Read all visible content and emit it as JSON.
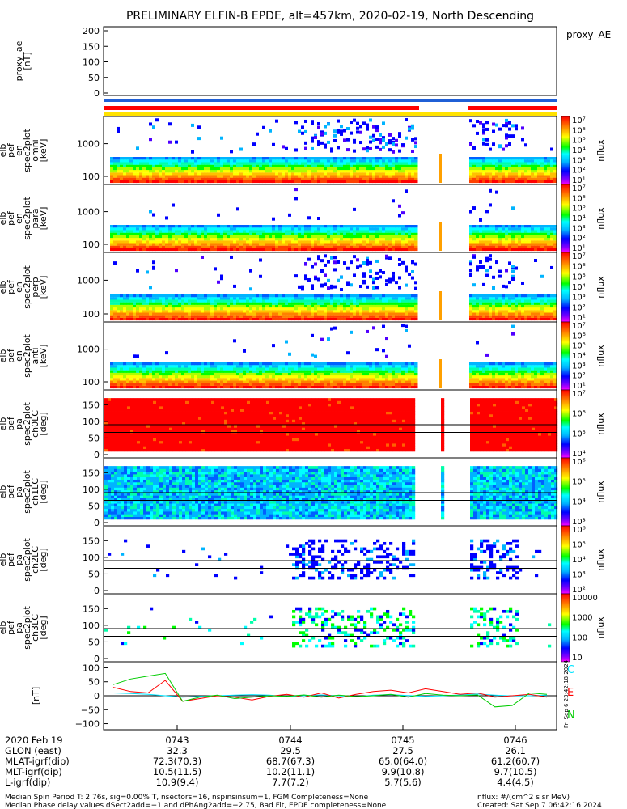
{
  "title": "PRELIMINARY ELFIN-B EPDE, alt=457km, 2020-02-19, North Descending",
  "colors": {
    "red": "#ff0000",
    "blue": "#1f5fd6",
    "yellow": "#ffe200",
    "cyan": "#00e5ff",
    "green": "#00cc00",
    "black": "#000000"
  },
  "panels": [
    {
      "id": "proxy_ae",
      "ylabel": [
        "proxy_ae",
        "[nT]"
      ],
      "yticks": [
        "200",
        "150",
        "100",
        "50",
        "0"
      ],
      "right_label": "proxy_AE"
    },
    {
      "id": "en_omni",
      "ylabel": [
        "elb",
        "pef",
        "en",
        "spec2plot",
        "omni",
        "[keV]"
      ],
      "yticks": [
        "1000",
        "100"
      ],
      "cb_label": "nflux",
      "cb_ticks": [
        "10⁷",
        "10⁶",
        "10⁵",
        "10⁴",
        "10³",
        "10²",
        "10¹"
      ]
    },
    {
      "id": "en_para",
      "ylabel": [
        "elb",
        "pef",
        "en",
        "spec2plot",
        "para",
        "[keV]"
      ],
      "yticks": [
        "1000",
        "100"
      ],
      "cb_label": "nflux",
      "cb_ticks": [
        "10⁷",
        "10⁶",
        "10⁵",
        "10⁴",
        "10³",
        "10²",
        "10¹"
      ]
    },
    {
      "id": "en_perp",
      "ylabel": [
        "elb",
        "pef",
        "en",
        "spec2plot",
        "perp",
        "[keV]"
      ],
      "yticks": [
        "1000",
        "100"
      ],
      "cb_label": "nflux",
      "cb_ticks": [
        "10⁷",
        "10⁶",
        "10⁵",
        "10⁴",
        "10³",
        "10²",
        "10¹"
      ]
    },
    {
      "id": "en_anti",
      "ylabel": [
        "elb",
        "pef",
        "en",
        "spec2plot",
        "anti",
        "[keV]"
      ],
      "yticks": [
        "1000",
        "100"
      ],
      "cb_label": "nflux",
      "cb_ticks": [
        "10⁷",
        "10⁶",
        "10⁵",
        "10⁴",
        "10³",
        "10²",
        "10¹"
      ]
    },
    {
      "id": "pa_ch0",
      "ylabel": [
        "elb",
        "pef",
        "pa",
        "spec2plot",
        "ch0LC",
        "[deg]"
      ],
      "yticks": [
        "150",
        "100",
        "50",
        "0"
      ],
      "cb_label": "nflux",
      "cb_ticks": [
        "10⁷",
        "10⁶",
        "10⁵",
        "10⁴"
      ]
    },
    {
      "id": "pa_ch1",
      "ylabel": [
        "elb",
        "pef",
        "pa",
        "spec2plot",
        "ch1LC",
        "[deg]"
      ],
      "yticks": [
        "150",
        "100",
        "50",
        "0"
      ],
      "cb_label": "nflux",
      "cb_ticks": [
        "10⁶",
        "10⁵",
        "10⁴",
        "10³"
      ]
    },
    {
      "id": "pa_ch2",
      "ylabel": [
        "elb",
        "pef",
        "pa",
        "spec2plot",
        "ch2LC",
        "[deg]"
      ],
      "yticks": [
        "150",
        "100",
        "50",
        "0"
      ],
      "cb_label": "nflux",
      "cb_ticks": [
        "10⁶",
        "10⁵",
        "10⁴",
        "10³",
        "10²"
      ]
    },
    {
      "id": "pa_ch3",
      "ylabel": [
        "elb",
        "pef",
        "pa",
        "spec2plot",
        "ch3LC",
        "[deg]"
      ],
      "yticks": [
        "150",
        "100",
        "50",
        "0"
      ],
      "cb_label": "nflux",
      "cb_ticks": [
        "10000",
        "1000",
        "100",
        "10"
      ]
    },
    {
      "id": "mag",
      "ylabel": [
        "[nT]"
      ],
      "yticks": [
        "100",
        "50",
        "0",
        "−50",
        "−100"
      ],
      "legend": [
        "C",
        "E",
        "N"
      ]
    }
  ],
  "side_stamp": "Fri Sep  6 23:42:18 2024",
  "time_axis": {
    "rows": [
      {
        "label": "2020 Feb 19",
        "values": [
          "0743",
          "0744",
          "0745",
          "0746"
        ]
      },
      {
        "label": "GLON (east)",
        "values": [
          "32.3",
          "29.5",
          "27.5",
          "26.1"
        ]
      },
      {
        "label": "MLAT-igrf(dip)",
        "values": [
          "72.3(70.3)",
          "68.7(67.3)",
          "65.0(64.0)",
          "61.2(60.7)"
        ]
      },
      {
        "label": "MLT-igrf(dip)",
        "values": [
          "10.5(11.5)",
          "10.2(11.1)",
          "9.9(10.8)",
          "9.7(10.5)"
        ]
      },
      {
        "label": "L-igrf(dip)",
        "values": [
          "10.9(9.4)",
          "7.7(7.2)",
          "5.7(5.6)",
          "4.4(4.5)"
        ]
      }
    ]
  },
  "footer": {
    "line1": "Median Spin Period T: 2.76s, sig=0.00% T, nsectors=16, nspinsinsum=1, FGM Completeness=None",
    "line2": "Median Phase delay values dSect2add=−1 and dPhAng2add=−2.75, Bad Fit, EPDE completeness=None",
    "units": "nflux: #/(cm^2 s sr MeV)",
    "created": "Created: Sat Sep  7 06:42:16 2024"
  },
  "chart_data": {
    "type": "heatmap",
    "title": "PRELIMINARY ELFIN-B EPDE, alt=457km, 2020-02-19, North Descending",
    "x_ticks": [
      "0743",
      "0744",
      "0745",
      "0746"
    ],
    "energy_ylim_keV": [
      60,
      5000
    ],
    "pitch_ylim_deg": [
      0,
      180
    ],
    "pitch_reference_lines_deg": [
      113,
      90,
      67
    ],
    "proxy_ae": {
      "ylabel": "proxy_ae [nT]",
      "ylim": [
        0,
        200
      ],
      "value": 170
    },
    "mag_series": [
      {
        "name": "C",
        "values": [
          10,
          8,
          5,
          0,
          -5,
          -2,
          0,
          2,
          4,
          2,
          -3,
          0,
          3,
          0,
          -4,
          2,
          4,
          1,
          -2,
          0,
          3,
          6,
          2,
          -1,
          0,
          2
        ]
      },
      {
        "name": "E",
        "values": [
          30,
          15,
          10,
          55,
          -20,
          -10,
          0,
          -5,
          -15,
          -2,
          5,
          -5,
          10,
          -8,
          5,
          15,
          20,
          10,
          25,
          15,
          5,
          10,
          -5,
          0,
          5,
          -5
        ]
      },
      {
        "name": "N",
        "values": [
          40,
          60,
          70,
          80,
          -20,
          -5,
          2,
          -10,
          -5,
          0,
          -2,
          3,
          -5,
          2,
          -3,
          0,
          5,
          -5,
          8,
          2,
          0,
          3,
          -40,
          -35,
          10,
          5
        ]
      }
    ],
    "mag_ylim": [
      -110,
      110
    ]
  }
}
